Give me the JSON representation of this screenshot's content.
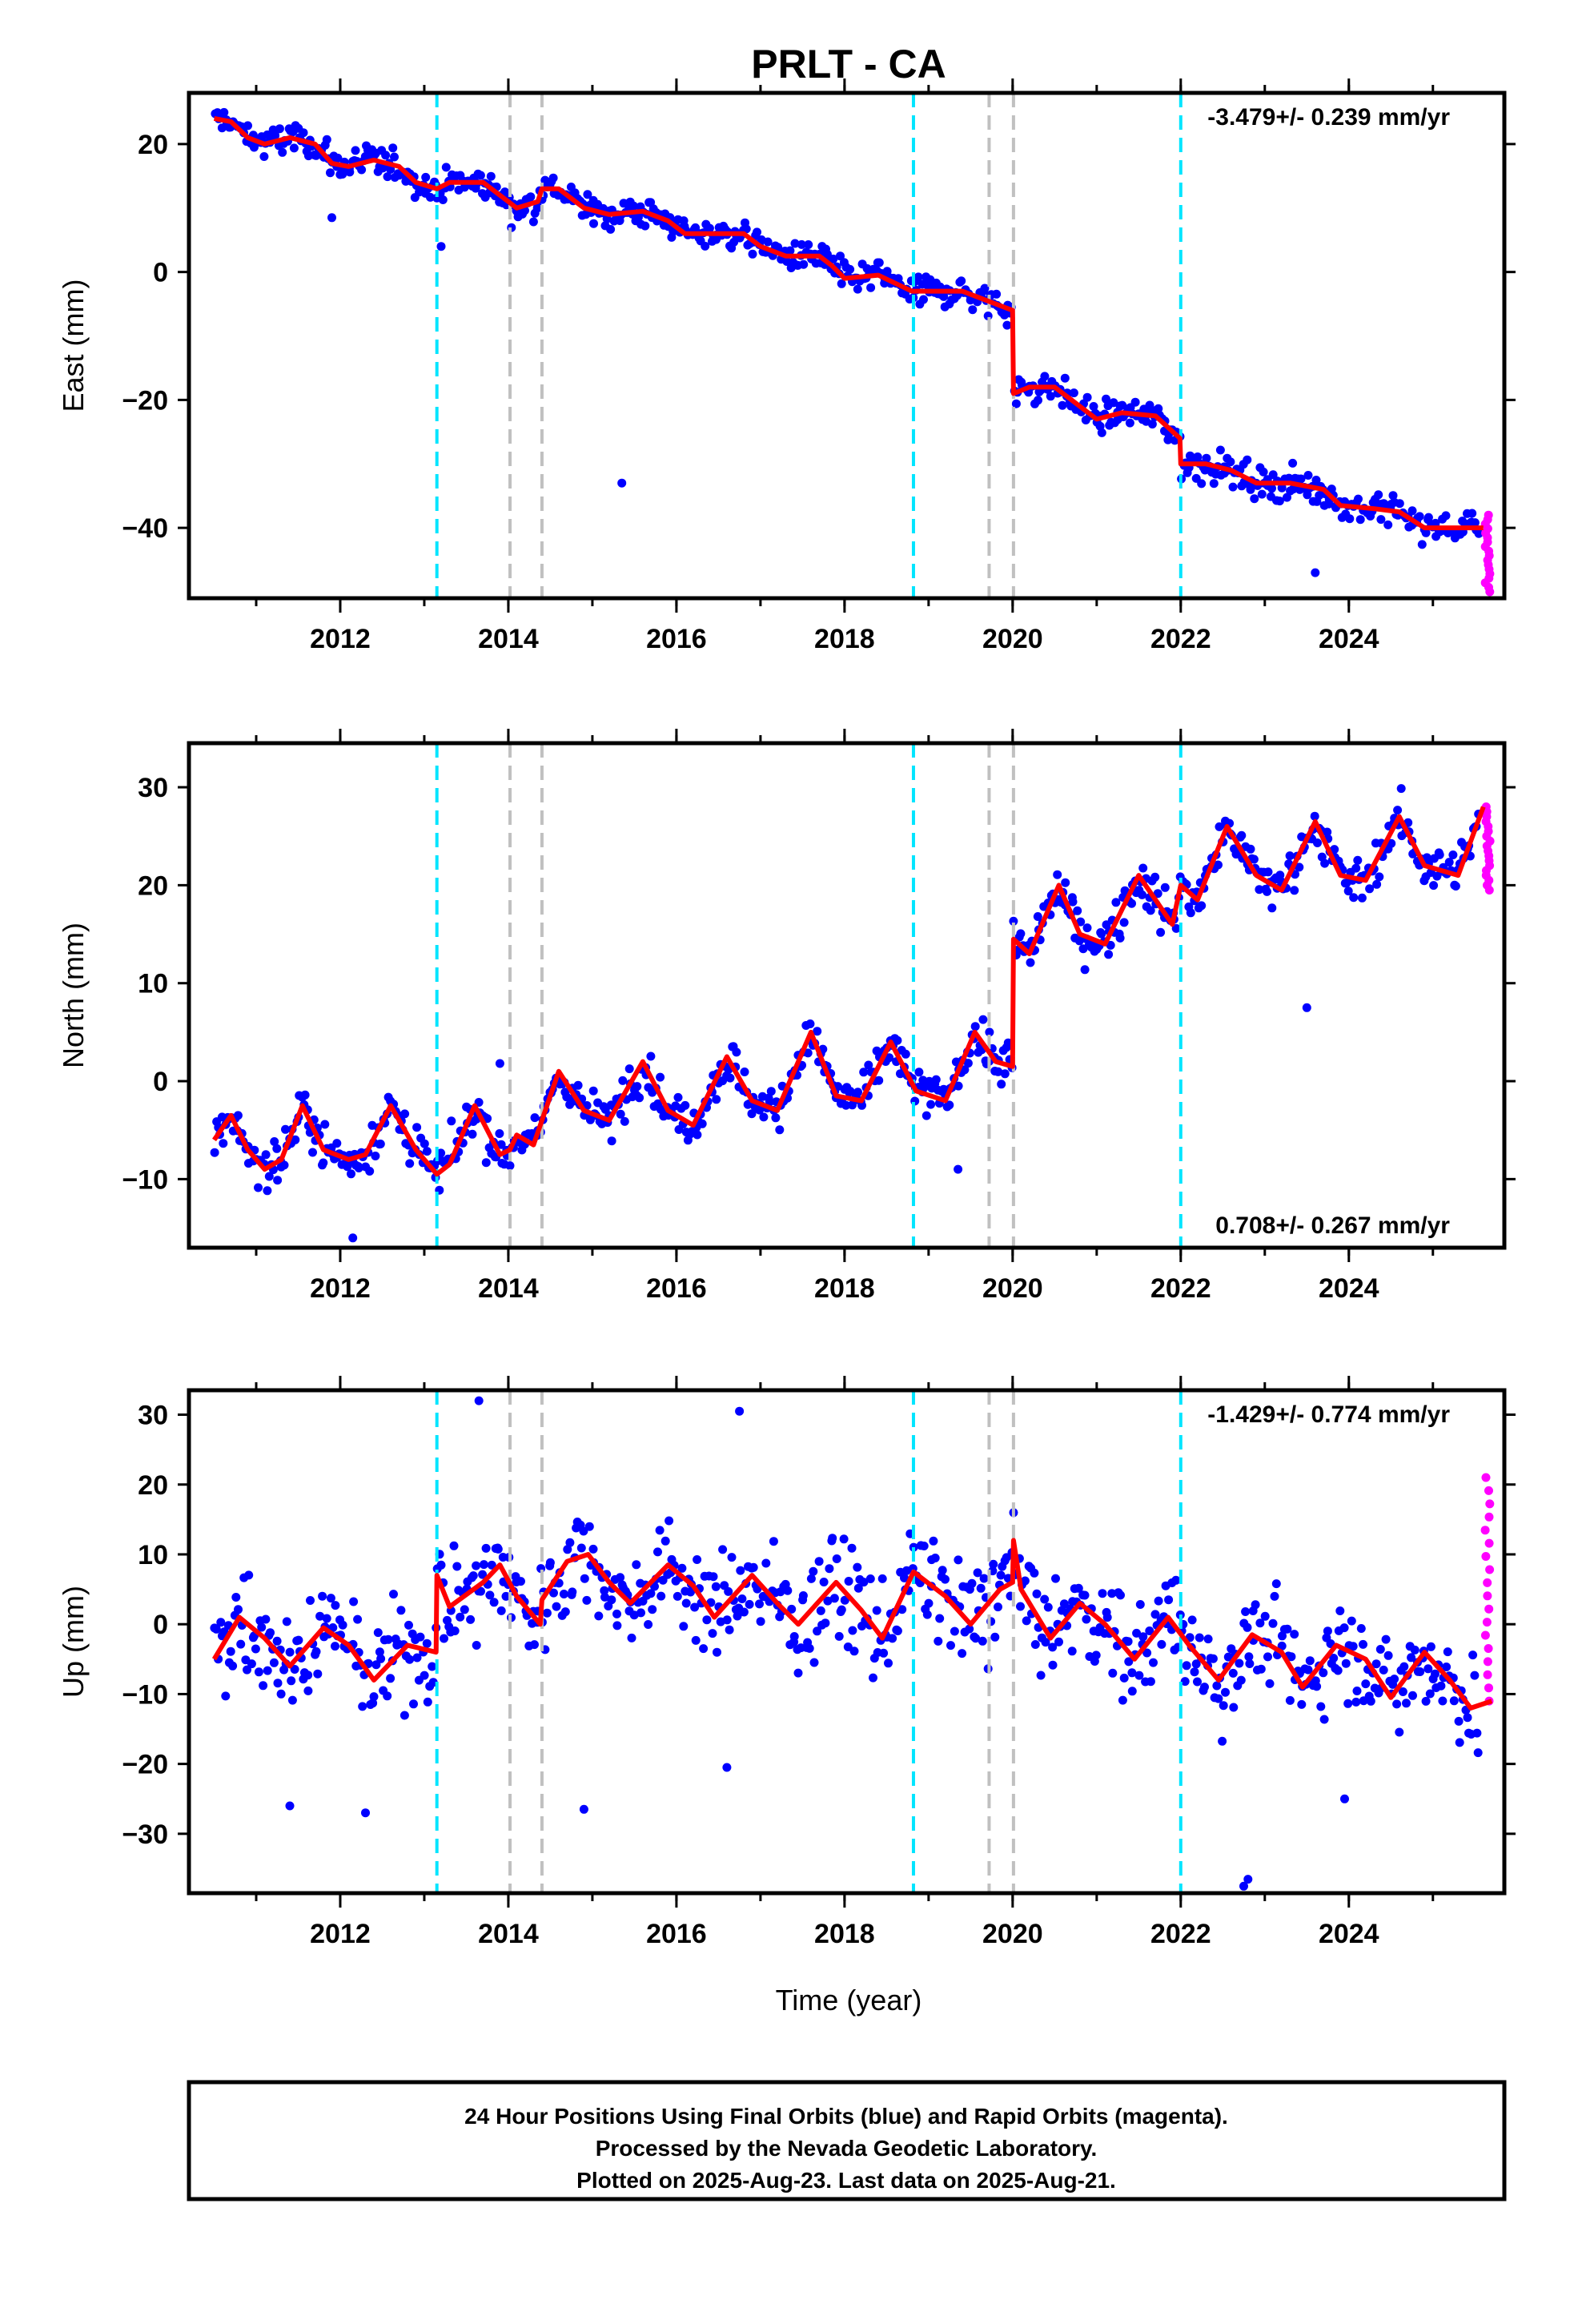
{
  "chart_data": {
    "title": "PRLT - CA",
    "type": "scatter",
    "xlabel": "Time (year)",
    "x_ticks": [
      "2012",
      "2014",
      "2016",
      "2018",
      "2020",
      "2022",
      "2024"
    ],
    "xlim": [
      2010.2,
      2025.85
    ],
    "panels": [
      {
        "id": "east",
        "ylabel": "East (mm)",
        "ylim": [
          -51,
          28
        ],
        "y_ticks": [
          "20",
          "0",
          "−20",
          "−40"
        ],
        "rate_label": "-3.479+/- 0.239 mm/yr",
        "rate_position": "top-right",
        "cyan_events": [
          2013.15,
          2018.82,
          2022.0
        ],
        "gray_events": [
          2014.02,
          2014.4,
          2019.72,
          2020.01
        ],
        "model": [
          [
            2010.5,
            24
          ],
          [
            2010.7,
            23.5
          ],
          [
            2010.9,
            21
          ],
          [
            2011.1,
            20
          ],
          [
            2011.4,
            21
          ],
          [
            2011.7,
            20
          ],
          [
            2011.9,
            17
          ],
          [
            2012.1,
            16.5
          ],
          [
            2012.4,
            17.5
          ],
          [
            2012.7,
            16.5
          ],
          [
            2012.9,
            14
          ],
          [
            2013.15,
            13
          ],
          [
            2013.3,
            14
          ],
          [
            2013.7,
            14
          ],
          [
            2014.0,
            11
          ],
          [
            2014.1,
            10
          ],
          [
            2014.35,
            11
          ],
          [
            2014.4,
            13
          ],
          [
            2014.6,
            13
          ],
          [
            2014.9,
            10
          ],
          [
            2015.2,
            9
          ],
          [
            2015.6,
            9.5
          ],
          [
            2015.9,
            8
          ],
          [
            2016.1,
            6
          ],
          [
            2016.5,
            6
          ],
          [
            2016.8,
            6
          ],
          [
            2017.0,
            4
          ],
          [
            2017.3,
            2.5
          ],
          [
            2017.7,
            2.5
          ],
          [
            2017.85,
            1
          ],
          [
            2018.0,
            -1
          ],
          [
            2018.4,
            -0.5
          ],
          [
            2018.8,
            -3
          ],
          [
            2019.0,
            -3
          ],
          [
            2019.4,
            -3
          ],
          [
            2019.7,
            -4.5
          ],
          [
            2020.0,
            -6
          ],
          [
            2020.01,
            -19
          ],
          [
            2020.2,
            -18
          ],
          [
            2020.5,
            -18
          ],
          [
            2020.7,
            -20
          ],
          [
            2021.0,
            -23
          ],
          [
            2021.3,
            -22
          ],
          [
            2021.7,
            -22.5
          ],
          [
            2021.99,
            -26
          ],
          [
            2022.0,
            -30
          ],
          [
            2022.3,
            -30
          ],
          [
            2022.6,
            -31
          ],
          [
            2022.9,
            -33
          ],
          [
            2023.3,
            -33
          ],
          [
            2023.7,
            -34
          ],
          [
            2023.9,
            -36.5
          ],
          [
            2024.3,
            -37
          ],
          [
            2024.6,
            -37.5
          ],
          [
            2024.9,
            -40
          ],
          [
            2025.3,
            -40
          ],
          [
            2025.6,
            -40
          ]
        ],
        "final_series": {
          "base_start": 24,
          "base_end": -40,
          "scatter": 1.7,
          "rate": -3.479,
          "steps": [
            [
              2020.0,
              -12
            ],
            [
              2022.0,
              -3
            ]
          ]
        },
        "rapid_range": [
          -50,
          -38
        ],
        "outliers": [
          [
            2015.35,
            -33
          ],
          [
            2023.6,
            -47
          ],
          [
            2011.9,
            8.5
          ],
          [
            2013.2,
            4
          ]
        ]
      },
      {
        "id": "north",
        "ylabel": "North (mm)",
        "ylim": [
          -17,
          34.5
        ],
        "y_ticks": [
          "30",
          "20",
          "10",
          "0",
          "−10"
        ],
        "rate_label": "0.708+/- 0.267 mm/yr",
        "rate_position": "bottom-right",
        "cyan_events": [
          2013.15,
          2018.82,
          2022.0
        ],
        "gray_events": [
          2014.02,
          2014.4,
          2019.72,
          2020.01
        ],
        "model": [
          [
            2010.5,
            -6
          ],
          [
            2010.7,
            -3.5
          ],
          [
            2010.9,
            -7
          ],
          [
            2011.1,
            -9
          ],
          [
            2011.3,
            -8
          ],
          [
            2011.55,
            -2.5
          ],
          [
            2011.8,
            -7
          ],
          [
            2012.1,
            -8
          ],
          [
            2012.3,
            -7.5
          ],
          [
            2012.6,
            -2.5
          ],
          [
            2012.9,
            -7
          ],
          [
            2013.15,
            -9.5
          ],
          [
            2013.3,
            -8.5
          ],
          [
            2013.6,
            -2.5
          ],
          [
            2013.9,
            -7.5
          ],
          [
            2014.02,
            -7
          ],
          [
            2014.1,
            -5.5
          ],
          [
            2014.3,
            -6.5
          ],
          [
            2014.6,
            1
          ],
          [
            2014.9,
            -3
          ],
          [
            2015.2,
            -4
          ],
          [
            2015.6,
            2
          ],
          [
            2015.9,
            -3
          ],
          [
            2016.2,
            -4.5
          ],
          [
            2016.6,
            2.5
          ],
          [
            2016.9,
            -2
          ],
          [
            2017.2,
            -3
          ],
          [
            2017.6,
            5
          ],
          [
            2017.9,
            -1.5
          ],
          [
            2018.2,
            -2
          ],
          [
            2018.55,
            4
          ],
          [
            2018.85,
            -1
          ],
          [
            2019.2,
            -2
          ],
          [
            2019.55,
            5
          ],
          [
            2019.8,
            2
          ],
          [
            2020.0,
            1.5
          ],
          [
            2020.01,
            14.5
          ],
          [
            2020.2,
            13
          ],
          [
            2020.55,
            20
          ],
          [
            2020.8,
            15
          ],
          [
            2021.1,
            14
          ],
          [
            2021.5,
            21
          ],
          [
            2021.9,
            16
          ],
          [
            2022.0,
            20
          ],
          [
            2022.2,
            18.5
          ],
          [
            2022.55,
            26
          ],
          [
            2022.9,
            21
          ],
          [
            2023.2,
            19.5
          ],
          [
            2023.6,
            26.5
          ],
          [
            2023.9,
            21
          ],
          [
            2024.2,
            20.5
          ],
          [
            2024.6,
            27
          ],
          [
            2024.9,
            22
          ],
          [
            2025.3,
            21
          ],
          [
            2025.6,
            28
          ]
        ],
        "final_series": {
          "base_start": -6,
          "base_end": 22,
          "scatter": 1.6,
          "rate": 0.708,
          "steps": [
            [
              2020.0,
              12
            ]
          ]
        },
        "rapid_range": [
          19.5,
          28
        ],
        "outliers": [
          [
            2012.15,
            -16
          ],
          [
            2023.5,
            7.5
          ],
          [
            2013.9,
            1.8
          ],
          [
            2019.35,
            -9
          ]
        ]
      },
      {
        "id": "up",
        "ylabel": "Up (mm)",
        "ylim": [
          -38.5,
          33.5
        ],
        "y_ticks": [
          "30",
          "20",
          "10",
          "0",
          "−10",
          "−20",
          "−30"
        ],
        "rate_label": "-1.429+/- 0.774 mm/yr",
        "rate_position": "top-right",
        "cyan_events": [
          2013.15,
          2018.82,
          2022.0
        ],
        "gray_events": [
          2014.02,
          2014.4,
          2019.72,
          2020.01
        ],
        "model": [
          [
            2010.5,
            -5
          ],
          [
            2010.8,
            1
          ],
          [
            2011.1,
            -2
          ],
          [
            2011.4,
            -6
          ],
          [
            2011.8,
            -0.5
          ],
          [
            2012.1,
            -3
          ],
          [
            2012.4,
            -8
          ],
          [
            2012.8,
            -3
          ],
          [
            2013.14,
            -4
          ],
          [
            2013.15,
            7
          ],
          [
            2013.3,
            2.5
          ],
          [
            2013.7,
            6
          ],
          [
            2013.9,
            8.5
          ],
          [
            2014.1,
            4
          ],
          [
            2014.38,
            0
          ],
          [
            2014.4,
            3.5
          ],
          [
            2014.7,
            9
          ],
          [
            2014.95,
            10
          ],
          [
            2015.2,
            6
          ],
          [
            2015.45,
            3
          ],
          [
            2015.9,
            8.5
          ],
          [
            2016.2,
            5.5
          ],
          [
            2016.45,
            1
          ],
          [
            2016.9,
            7
          ],
          [
            2017.2,
            3
          ],
          [
            2017.45,
            0
          ],
          [
            2017.9,
            6
          ],
          [
            2018.2,
            2
          ],
          [
            2018.45,
            -2
          ],
          [
            2018.82,
            7.5
          ],
          [
            2019.2,
            4
          ],
          [
            2019.5,
            0
          ],
          [
            2019.85,
            5
          ],
          [
            2020.0,
            6
          ],
          [
            2020.01,
            12
          ],
          [
            2020.1,
            5
          ],
          [
            2020.45,
            -2
          ],
          [
            2020.8,
            3
          ],
          [
            2021.1,
            0
          ],
          [
            2021.45,
            -5
          ],
          [
            2021.85,
            1
          ],
          [
            2022.1,
            -3
          ],
          [
            2022.45,
            -8
          ],
          [
            2022.85,
            -1.5
          ],
          [
            2023.2,
            -4
          ],
          [
            2023.45,
            -9
          ],
          [
            2023.85,
            -3
          ],
          [
            2024.2,
            -5
          ],
          [
            2024.5,
            -10.5
          ],
          [
            2024.9,
            -4
          ],
          [
            2025.2,
            -8
          ],
          [
            2025.45,
            -12
          ],
          [
            2025.7,
            -11
          ]
        ],
        "final_series": {
          "base_start": -3,
          "base_end": -9,
          "scatter": 5.2,
          "rate": -1.429,
          "steps": [
            [
              2013.15,
              8
            ]
          ]
        },
        "rapid_range": [
          -11,
          21
        ],
        "outliers": [
          [
            2013.65,
            32
          ],
          [
            2016.75,
            30.5
          ],
          [
            2014.9,
            -26.5
          ],
          [
            2022.8,
            -36.5
          ],
          [
            2022.75,
            -37.5
          ],
          [
            2011.4,
            -26
          ],
          [
            2012.3,
            -27
          ],
          [
            2016.6,
            -20.5
          ],
          [
            2023.95,
            -25
          ]
        ]
      }
    ]
  },
  "footer": {
    "line1": "24 Hour Positions Using Final Orbits (blue) and Rapid Orbits (magenta).",
    "line2": "Processed by the Nevada Geodetic Laboratory.",
    "line3": "Plotted on 2025-Aug-23. Last data on 2025-Aug-21."
  },
  "colors": {
    "final": "#0000ff",
    "rapid": "#ff00ff",
    "model": "#ff0000",
    "cyan_event": "#00e5ff",
    "gray_event": "#c0c0c0"
  }
}
